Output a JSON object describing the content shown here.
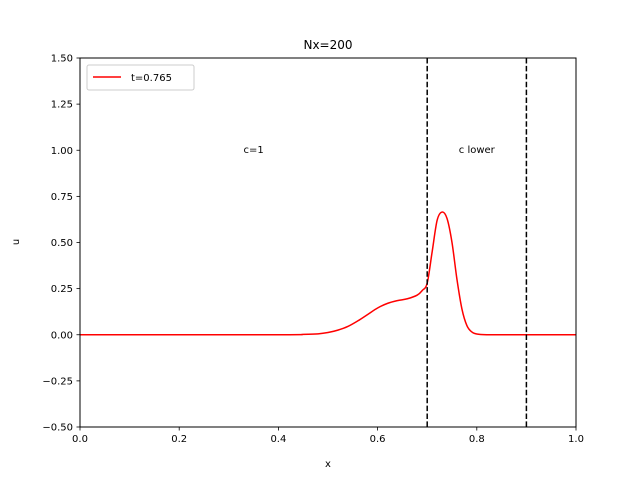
{
  "chart_data": {
    "type": "line",
    "title": "Nx=200",
    "xlabel": "x",
    "ylabel": "u",
    "xlim": [
      0.0,
      1.0
    ],
    "ylim": [
      -0.5,
      1.5
    ],
    "xticks": [
      "0.0",
      "0.2",
      "0.4",
      "0.6",
      "0.8",
      "1.0"
    ],
    "xtick_values": [
      0.0,
      0.2,
      0.4,
      0.6,
      0.8,
      1.0
    ],
    "yticks": [
      "−0.50",
      "−0.25",
      "0.00",
      "0.25",
      "0.50",
      "0.75",
      "1.00",
      "1.25",
      "1.50"
    ],
    "ytick_values": [
      -0.5,
      -0.25,
      0.0,
      0.25,
      0.5,
      0.75,
      1.0,
      1.25,
      1.5
    ],
    "grid": false,
    "legend_position": "top-left",
    "series": [
      {
        "name": "t=0.765",
        "color": "#ff0000",
        "x": [
          0.0,
          0.4,
          0.45,
          0.48,
          0.5,
          0.52,
          0.54,
          0.56,
          0.58,
          0.6,
          0.62,
          0.64,
          0.66,
          0.68,
          0.69,
          0.7,
          0.71,
          0.72,
          0.73,
          0.74,
          0.75,
          0.76,
          0.77,
          0.78,
          0.79,
          0.8,
          0.82,
          0.85,
          0.9,
          1.0
        ],
        "y": [
          0.0,
          0.0,
          0.002,
          0.005,
          0.012,
          0.025,
          0.045,
          0.075,
          0.11,
          0.145,
          0.17,
          0.185,
          0.195,
          0.215,
          0.24,
          0.28,
          0.45,
          0.62,
          0.665,
          0.63,
          0.5,
          0.3,
          0.14,
          0.05,
          0.015,
          0.004,
          0.0,
          0.0,
          0.0,
          0.0
        ]
      }
    ],
    "vlines": [
      {
        "x": 0.7,
        "color": "#000000",
        "style": "dashed"
      },
      {
        "x": 0.9,
        "color": "#000000",
        "style": "dashed"
      }
    ],
    "annotations": [
      {
        "text": "c=1",
        "x": 0.35,
        "y": 1.0
      },
      {
        "text": "c lower",
        "x": 0.8,
        "y": 1.0
      }
    ]
  }
}
